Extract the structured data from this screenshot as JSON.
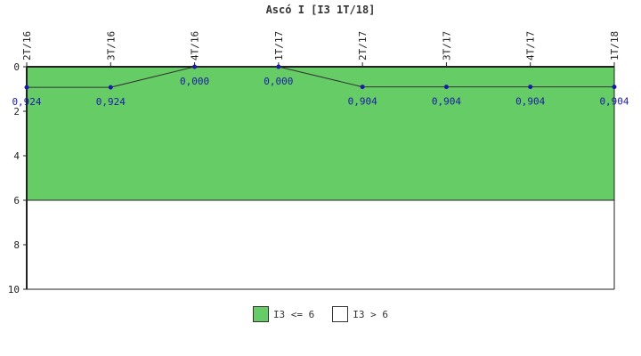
{
  "chart_data": {
    "type": "line",
    "title": "Ascó I [I3 1T/18]",
    "categories": [
      "2T/16",
      "3T/16",
      "4T/16",
      "1T/17",
      "2T/17",
      "3T/17",
      "4T/17",
      "1T/18"
    ],
    "series": [
      {
        "values": [
          0.924,
          0.924,
          0.0,
          0.0,
          0.904,
          0.904,
          0.904,
          0.904
        ],
        "labels": [
          "0,924",
          "0,924",
          "0,000",
          "0,000",
          "0,904",
          "0,904",
          "0,904",
          "0,904"
        ]
      }
    ],
    "ylim": [
      0,
      10
    ],
    "y_inverted": true,
    "yticks": [
      "0",
      "2",
      "4",
      "6",
      "8",
      "10"
    ],
    "bands": [
      {
        "name": "I3 <= 6",
        "from": 0,
        "to": 6,
        "color": "#66cc66"
      },
      {
        "name": "I3 > 6",
        "from": 6,
        "to": 10,
        "color": "#ffffff"
      }
    ],
    "line_color": "#333333",
    "marker_color": "#1a1aa6",
    "legend_position": "bottom-center"
  }
}
